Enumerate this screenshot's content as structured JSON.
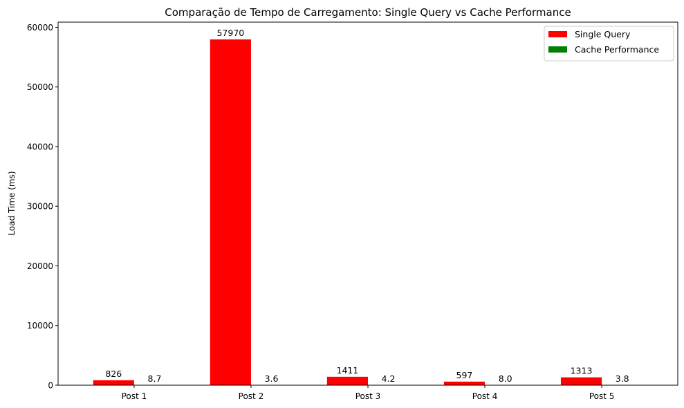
{
  "chart_data": {
    "type": "bar",
    "title": "Comparação de Tempo de Carregamento: Single Query vs Cache Performance",
    "xlabel": "",
    "ylabel": "Load Time (ms)",
    "categories": [
      "Post 1",
      "Post 2",
      "Post 3",
      "Post 4",
      "Post 5"
    ],
    "series": [
      {
        "name": "Single Query",
        "color": "#ff0000",
        "values": [
          826,
          57970,
          1411,
          597,
          1313
        ],
        "labels": [
          "826",
          "57970",
          "1411",
          "597",
          "1313"
        ]
      },
      {
        "name": "Cache Performance",
        "color": "#008000",
        "values": [
          8.7,
          3.6,
          4.2,
          8.0,
          3.8
        ],
        "labels": [
          "8.7",
          "3.6",
          "4.2",
          "8.0",
          "3.8"
        ]
      }
    ],
    "ylim": [
      0,
      60867
    ],
    "yticks": [
      0,
      10000,
      20000,
      30000,
      40000,
      50000,
      60000
    ],
    "grid": false,
    "legend_position": "top-right"
  }
}
